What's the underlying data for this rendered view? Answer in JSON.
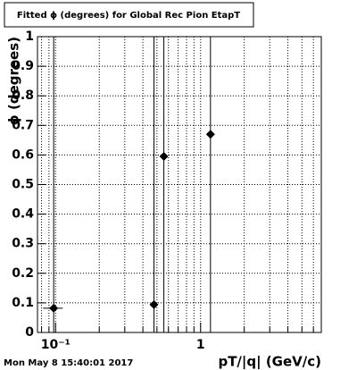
{
  "chart_data": {
    "type": "scatter",
    "title": "Fitted ϕ (degrees) for Global Rec Pion EtapT",
    "x_label": "pT/|q| (GeV/c)",
    "y_label": "ϕ (degrees)",
    "timestamp": "Mon May  8 15:40:01 2017",
    "x": [
      0.097,
      0.477,
      0.558,
      1.17
    ],
    "xerr": [
      0.015,
      0,
      0,
      0
    ],
    "values": [
      0.082,
      0.094,
      0.595,
      0.67
    ],
    "yerr": [
      1.2,
      1.2,
      1.2,
      1.2
    ],
    "color": "#000000",
    "log_x": true,
    "xlim": [
      0.075,
      6.8
    ],
    "ylim": [
      0,
      1
    ],
    "xticks": [
      {
        "value": 0.1,
        "label": "10⁻¹"
      },
      1
    ],
    "xminor": [
      0.08,
      0.09,
      0.2,
      0.3,
      0.4,
      0.5,
      0.6,
      0.7,
      0.8,
      0.9,
      2,
      3,
      4,
      5,
      6
    ],
    "yticks": [
      0,
      0.1,
      0.2,
      0.3,
      0.4,
      0.5,
      0.6,
      0.7,
      0.8,
      0.9,
      1
    ],
    "grid": true
  }
}
